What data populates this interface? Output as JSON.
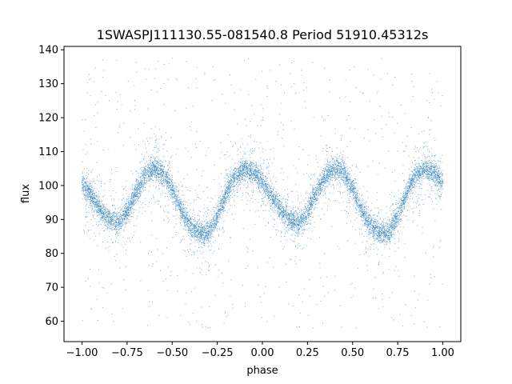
{
  "chart_data": {
    "type": "scatter",
    "title": "1SWASPJ111130.55-081540.8 Period 51910.45312s",
    "xlabel": "phase",
    "ylabel": "flux",
    "xlim": [
      -1.1,
      1.1
    ],
    "ylim": [
      54,
      141
    ],
    "xticks": [
      -1.0,
      -0.75,
      -0.5,
      -0.25,
      0.0,
      0.25,
      0.5,
      0.75,
      1.0
    ],
    "xtick_labels": [
      "−1.00",
      "−0.75",
      "−0.50",
      "−0.25",
      "0.00",
      "0.25",
      "0.50",
      "0.75",
      "1.00"
    ],
    "yticks": [
      60,
      70,
      80,
      90,
      100,
      110,
      120,
      130,
      140
    ],
    "ytick_labels": [
      "60",
      "70",
      "80",
      "90",
      "100",
      "110",
      "120",
      "130",
      "140"
    ],
    "grid": false,
    "legend": "none",
    "marker_color": "#1f77b4",
    "series": [
      {
        "x": [
          -1.0,
          -0.95,
          -0.9,
          -0.85,
          -0.8,
          -0.75,
          -0.7,
          -0.65,
          -0.6,
          -0.55,
          -0.5,
          -0.45,
          -0.4,
          -0.35,
          -0.3,
          -0.25,
          -0.2,
          -0.15,
          -0.1,
          -0.05,
          0.0,
          0.05,
          0.1,
          0.15,
          0.2,
          0.25,
          0.3,
          0.35,
          0.4,
          0.45,
          0.5,
          0.55,
          0.6,
          0.65,
          0.7,
          0.75,
          0.8,
          0.85,
          0.9,
          0.95,
          1.0
        ],
        "y": [
          101,
          97,
          93,
          90,
          89,
          92,
          98,
          103,
          105,
          104,
          99,
          93,
          88,
          86,
          86,
          91,
          98,
          103,
          105,
          104,
          101,
          97,
          93,
          90,
          89,
          92,
          98,
          103,
          105,
          104,
          99,
          93,
          88,
          86,
          86,
          91,
          98,
          103,
          105,
          104,
          101
        ]
      }
    ]
  }
}
